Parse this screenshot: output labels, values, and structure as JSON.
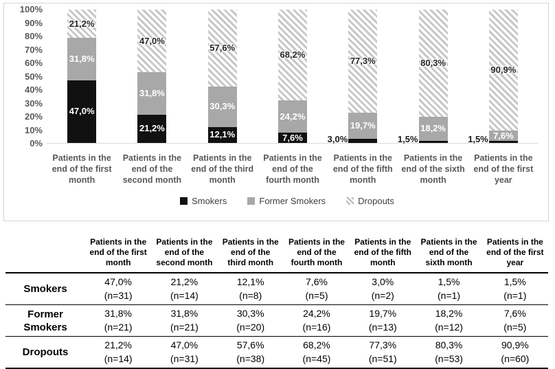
{
  "chart_data": {
    "type": "bar",
    "stacked": true,
    "percent": true,
    "title": "",
    "xlabel": "",
    "ylabel": "",
    "ylim": [
      0,
      100
    ],
    "grid": false,
    "legend_position": "bottom",
    "y_ticks": [
      "100%",
      "90%",
      "80%",
      "70%",
      "60%",
      "50%",
      "40%",
      "30%",
      "20%",
      "10%",
      "0%"
    ],
    "categories": [
      "Patients in the\nend of the first\nmonth",
      "Patients in the\nend of the\nsecond month",
      "Patients in the\nend of the third\nmonth",
      "Patients in the\nend of the\nfourth month",
      "Patients in the\nend of the fifth\nmonth",
      "Patients in the\nend of the sixth\nmonth",
      "Patients in the\nend of the first\nyear"
    ],
    "series": [
      {
        "name": "Smokers",
        "style": "solid-black",
        "color": "#111111",
        "values": [
          47.0,
          21.2,
          12.1,
          7.6,
          3.0,
          1.5,
          1.5
        ],
        "labels": [
          "47,0%",
          "21,2%",
          "12,1%",
          "7,6%",
          "3,0%",
          "1,5%",
          "1,5%"
        ],
        "n": [
          31,
          14,
          8,
          5,
          2,
          1,
          1
        ]
      },
      {
        "name": "Former Smokers",
        "style": "solid-gray",
        "color": "#a8a8a8",
        "values": [
          31.8,
          31.8,
          30.3,
          24.2,
          19.7,
          18.2,
          7.6
        ],
        "labels": [
          "31,8%",
          "31,8%",
          "30,3%",
          "24,2%",
          "19,7%",
          "18,2%",
          "7,6%"
        ],
        "n": [
          21,
          21,
          20,
          16,
          13,
          12,
          5
        ]
      },
      {
        "name": "Dropouts",
        "style": "diagonal-hatch",
        "color": "#c7c7c7",
        "values": [
          21.2,
          47.0,
          57.6,
          68.2,
          77.3,
          80.3,
          90.9
        ],
        "labels": [
          "21,2%",
          "47,0%",
          "57,6%",
          "68,2%",
          "77,3%",
          "80,3%",
          "90,9%"
        ],
        "n": [
          14,
          31,
          38,
          45,
          51,
          53,
          60
        ]
      }
    ]
  },
  "table": {
    "col_headers": [
      "Patients in the\nend of the first\nmonth",
      "Patients in the\nend of the\nsecond month",
      "Patients in the\nend of the\nthird month",
      "Patients in the\nend of the\nfourth month",
      "Patients in the\nend of the fifth\nmonth",
      "Patients in the\nend of the\nsixth month",
      "Patients in the\nend of the first\nyear"
    ],
    "row_labels": [
      "Smokers",
      "Former\nSmokers",
      "Dropouts"
    ]
  }
}
